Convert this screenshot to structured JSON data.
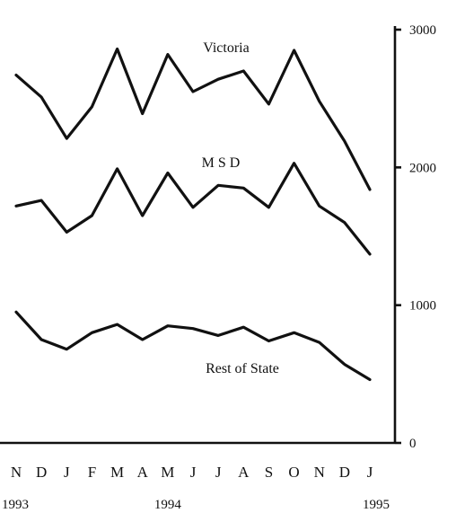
{
  "chart_data": {
    "type": "line",
    "categories": [
      "N",
      "D",
      "J",
      "F",
      "M",
      "A",
      "M",
      "J",
      "J",
      "A",
      "S",
      "O",
      "N",
      "D",
      "J"
    ],
    "years": [
      {
        "label": "1993",
        "index": 0
      },
      {
        "label": "1994",
        "index": 6
      },
      {
        "label": "1995",
        "index": 14
      }
    ],
    "series": [
      {
        "name": "Victoria",
        "values": [
          2670,
          2510,
          2210,
          2440,
          2860,
          2390,
          2820,
          2550,
          2640,
          2700,
          2460,
          2850,
          2480,
          2190,
          1840
        ]
      },
      {
        "name": "M S D",
        "values": [
          1720,
          1760,
          1530,
          1650,
          1990,
          1650,
          1960,
          1710,
          1870,
          1850,
          1710,
          2030,
          1720,
          1600,
          1370
        ]
      },
      {
        "name": "Rest of State",
        "values": [
          950,
          750,
          680,
          800,
          860,
          750,
          850,
          830,
          780,
          840,
          740,
          800,
          730,
          570,
          460
        ]
      }
    ],
    "yticks": [
      0,
      1000,
      2000,
      3000
    ],
    "ylim": [
      0,
      3000
    ],
    "y_axis_side": "right",
    "grid": false,
    "legend": "none (series labelled directly above their lines)",
    "title": "",
    "xlabel": "",
    "ylabel": ""
  }
}
